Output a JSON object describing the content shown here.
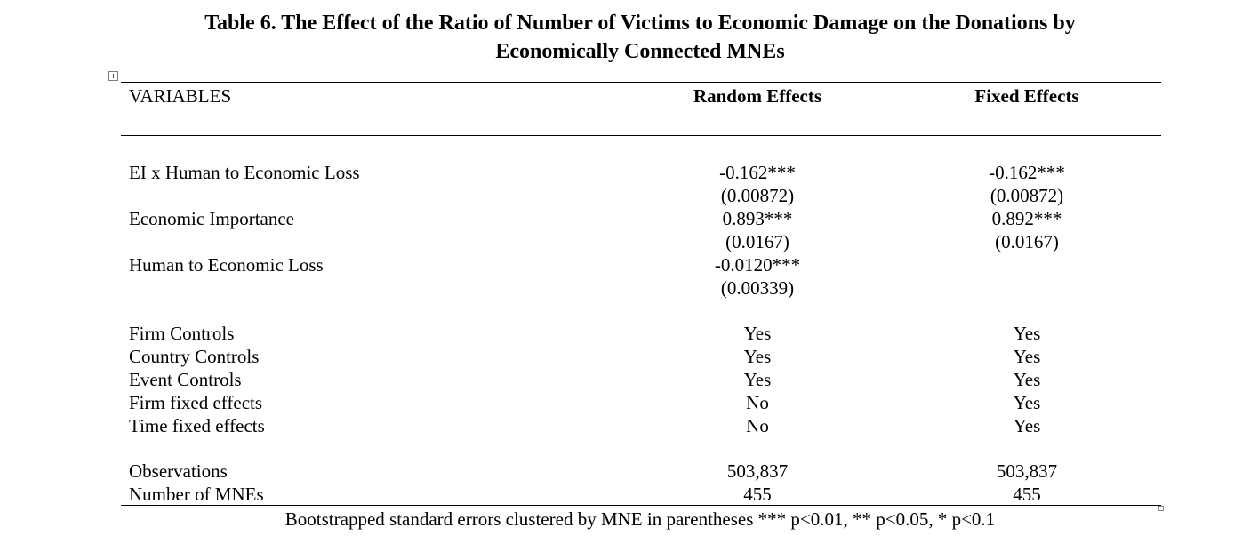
{
  "title": {
    "line1": "Table 6. The Effect of the Ratio of Number of Victims to Economic Damage on the Donations by",
    "line2": "Economically Connected MNEs"
  },
  "header": {
    "variables": "VARIABLES",
    "col1": "Random Effects",
    "col2": "Fixed Effects"
  },
  "coefficients": [
    {
      "label": "EI x Human to Economic Loss",
      "re_coef": "-0.162***",
      "re_se": "(0.00872)",
      "fe_coef": "-0.162***",
      "fe_se": "(0.00872)"
    },
    {
      "label": "Economic Importance",
      "re_coef": "0.893***",
      "re_se": "(0.0167)",
      "fe_coef": "0.892***",
      "fe_se": "(0.0167)"
    },
    {
      "label": "Human to Economic Loss",
      "re_coef": "-0.0120***",
      "re_se": "(0.00339)",
      "fe_coef": "",
      "fe_se": ""
    }
  ],
  "controls": [
    {
      "label": "Firm Controls",
      "re": "Yes",
      "fe": "Yes"
    },
    {
      "label": "Country Controls",
      "re": "Yes",
      "fe": "Yes"
    },
    {
      "label": "Event Controls",
      "re": "Yes",
      "fe": "Yes"
    },
    {
      "label": "Firm fixed effects",
      "re": "No",
      "fe": "Yes"
    },
    {
      "label": "Time fixed effects",
      "re": "No",
      "fe": "Yes"
    }
  ],
  "stats": [
    {
      "label": "Observations",
      "re": "503,837",
      "fe": "503,837"
    },
    {
      "label": "Number of MNEs",
      "re": "455",
      "fe": "455"
    }
  ],
  "note": "Bootstrapped standard errors clustered by MNE in parentheses *** p<0.01, ** p<0.05, * p<0.1"
}
